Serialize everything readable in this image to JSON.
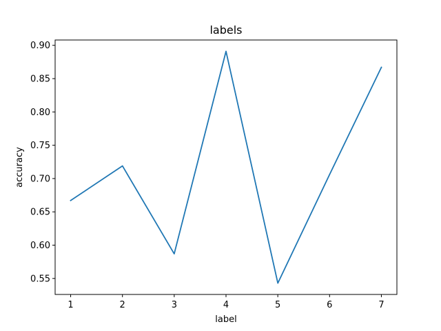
{
  "chart_data": {
    "type": "line",
    "title": "labels",
    "xlabel": "label",
    "ylabel": "accuracy",
    "x": [
      1,
      2,
      3,
      4,
      5,
      6,
      7
    ],
    "series": [
      {
        "values": [
          0.667,
          0.719,
          0.587,
          0.891,
          0.543,
          0.706,
          0.867
        ]
      }
    ],
    "xlim": [
      0.7,
      7.3
    ],
    "ylim": [
      0.526,
      0.908
    ],
    "xticks": [
      1,
      2,
      3,
      4,
      5,
      6,
      7
    ],
    "xtick_labels": [
      "1",
      "2",
      "3",
      "4",
      "5",
      "6",
      "7"
    ],
    "yticks": [
      0.55,
      0.6,
      0.65,
      0.7,
      0.75,
      0.8,
      0.85,
      0.9
    ],
    "ytick_labels": [
      "0.55",
      "0.60",
      "0.65",
      "0.70",
      "0.75",
      "0.80",
      "0.85",
      "0.90"
    ],
    "grid": false,
    "line_color": "#1f77b4"
  }
}
